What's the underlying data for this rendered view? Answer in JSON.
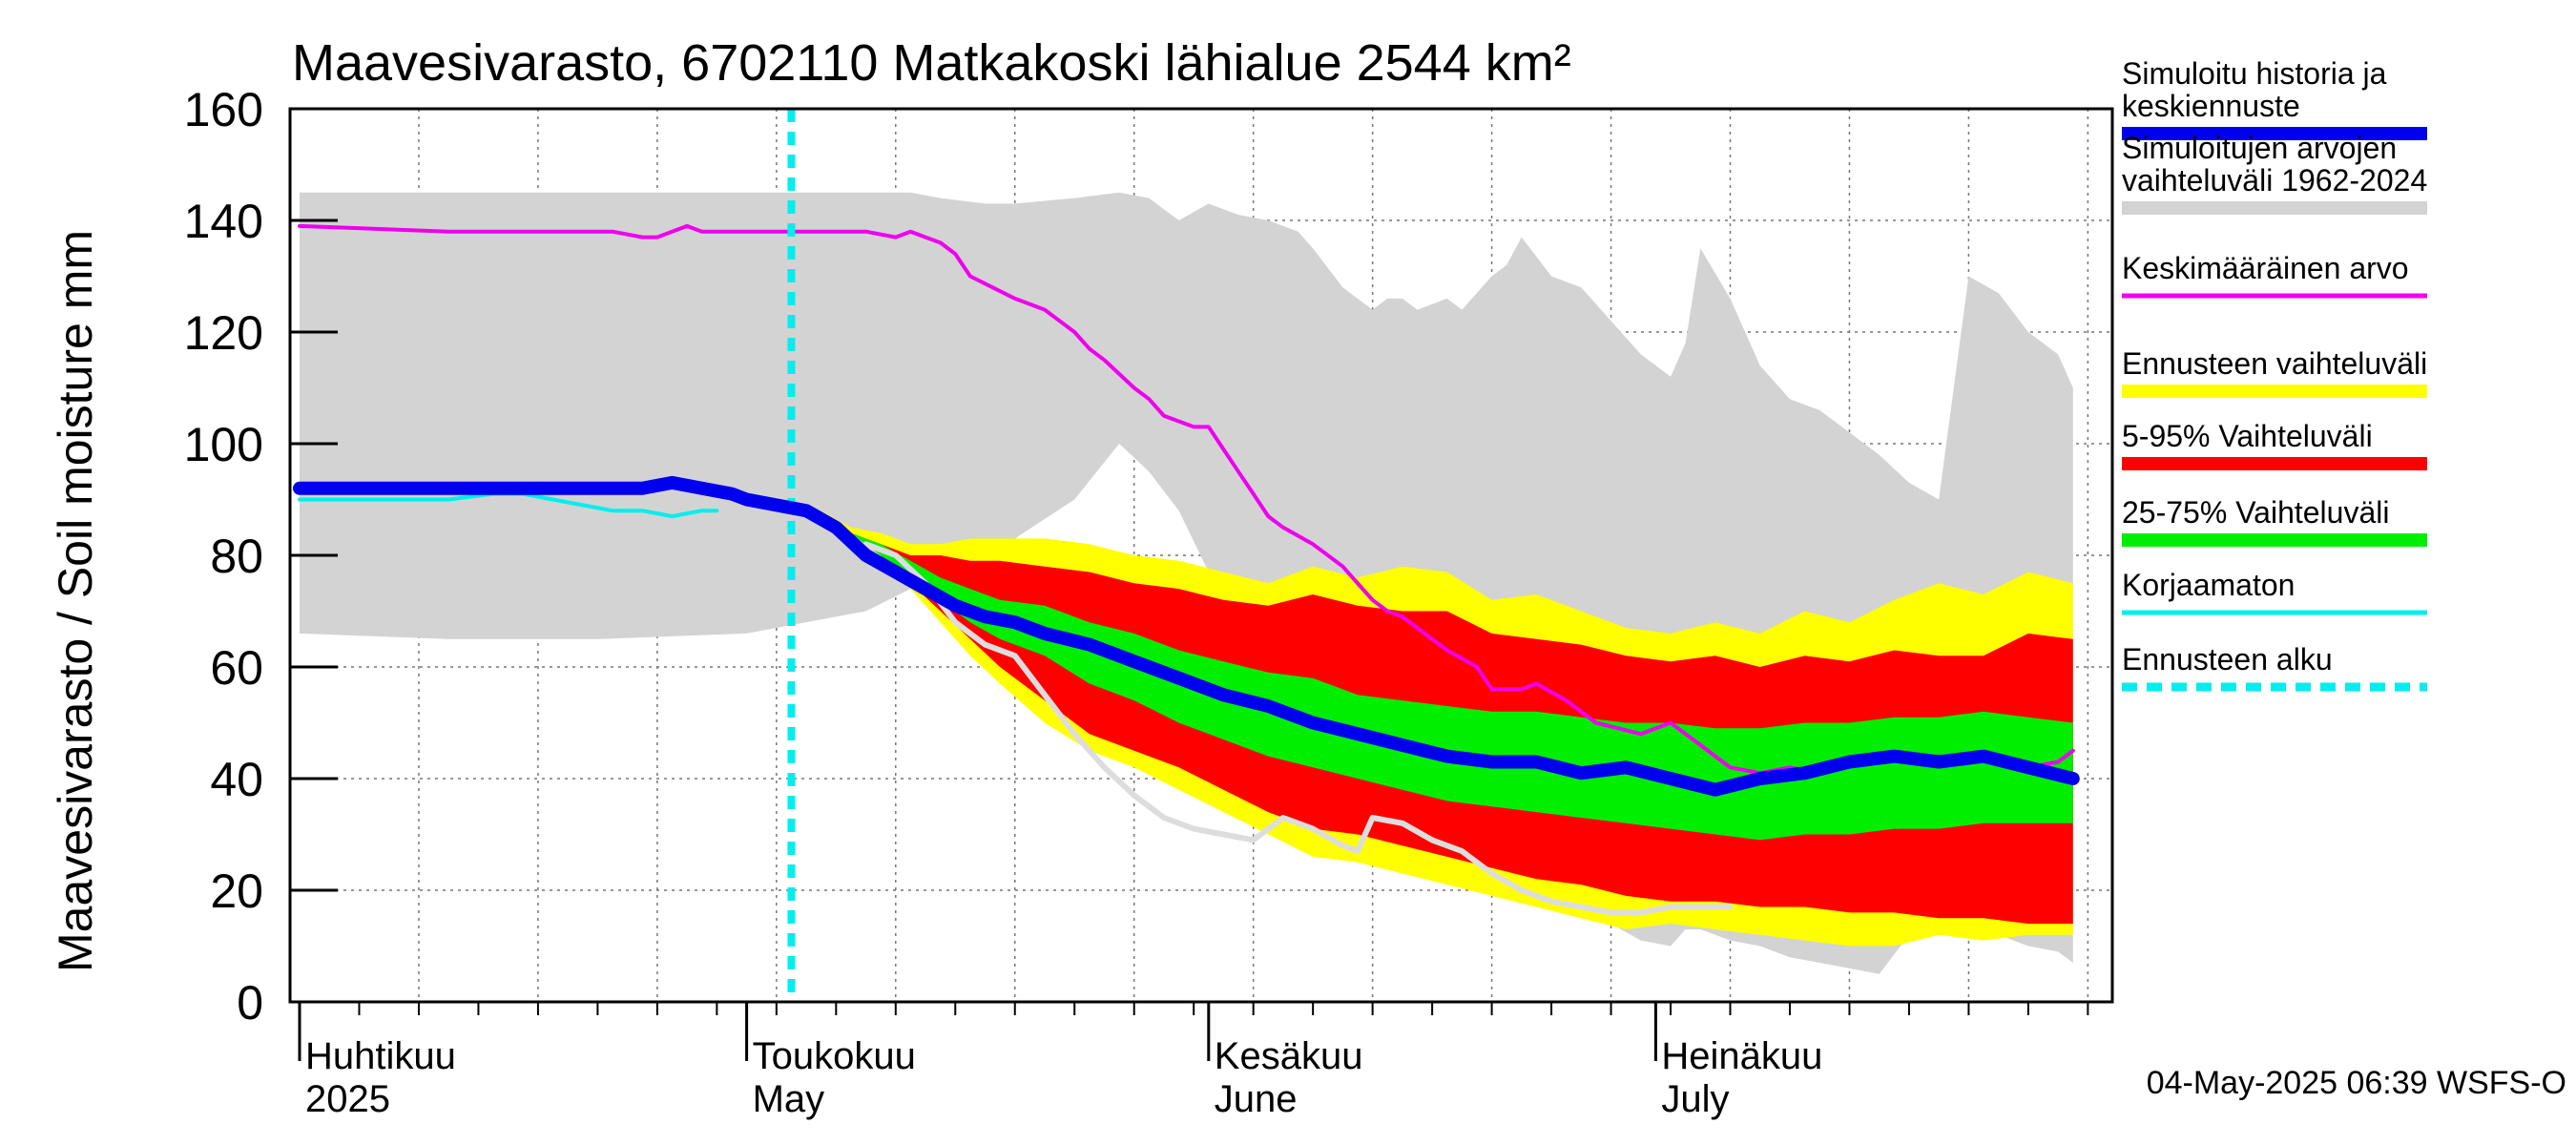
{
  "chart_data": {
    "type": "area",
    "title": "Maavesivarasto, 6702110 Matkakoski lähialue 2544 km²",
    "ylabel": "Maavesivarasto / Soil moisture   mm",
    "ylim": [
      0,
      160
    ],
    "yticks": [
      0,
      20,
      40,
      60,
      80,
      100,
      120,
      140,
      160
    ],
    "x_start": "2025-04-01",
    "x_end": "2025-07-31",
    "grid": true,
    "forecast_start": "2025-05-04",
    "month_labels": [
      {
        "date": "2025-04-01",
        "fi": "Huhtikuu",
        "en": "2025"
      },
      {
        "date": "2025-05-01",
        "fi": "Toukokuu",
        "en": "May"
      },
      {
        "date": "2025-06-01",
        "fi": "Kesäkuu",
        "en": "June"
      },
      {
        "date": "2025-07-01",
        "fi": "Heinäkuu",
        "en": "July"
      }
    ],
    "footer": "04-May-2025 06:39 WSFS-O",
    "legend": [
      {
        "key": "mean_forecast",
        "label_lines": [
          "Simuloitu historia ja",
          "keskiennuste"
        ],
        "color": "#0000ee",
        "style": "thick"
      },
      {
        "key": "hist_range",
        "label_lines": [
          "Simuloitujen arvojen",
          "vaihteluväli 1962-2024"
        ],
        "color": "#d3d3d3",
        "style": "thick"
      },
      {
        "key": "mean_value",
        "label_lines": [
          "Keskimääräinen arvo"
        ],
        "color": "#ee00ee",
        "style": "thin"
      },
      {
        "key": "forecast_range",
        "label_lines": [
          "Ennusteen vaihteluväli"
        ],
        "color": "#ffff00",
        "style": "thick"
      },
      {
        "key": "p5_95",
        "label_lines": [
          "5-95% Vaihteluväli"
        ],
        "color": "#ff0000",
        "style": "thick"
      },
      {
        "key": "p25_75",
        "label_lines": [
          "25-75% Vaihteluväli"
        ],
        "color": "#00ee00",
        "style": "thick"
      },
      {
        "key": "uncorrected",
        "label_lines": [
          "Korjaamaton"
        ],
        "color": "#00eeee",
        "style": "thin"
      },
      {
        "key": "forecast_start",
        "label_lines": [
          "Ennusteen alku"
        ],
        "color": "#00eeee",
        "style": "dashed"
      }
    ],
    "series": {
      "hist_range": {
        "name": "Simuloitujen arvojen vaihteluväli 1962-2024",
        "color": "#d3d3d3",
        "day": [
          0,
          10,
          20,
          30,
          38,
          41,
          43,
          46,
          48,
          52,
          55,
          57,
          59,
          61,
          63,
          65,
          66,
          67,
          68,
          70,
          72,
          73,
          74,
          75,
          76,
          77,
          78,
          80,
          81,
          82,
          84,
          86,
          88,
          90,
          92,
          93,
          94,
          96,
          98,
          100,
          102,
          104,
          106,
          108,
          110,
          112,
          114,
          116,
          118,
          119
        ],
        "upper": [
          145,
          145,
          145,
          145,
          145,
          145,
          144,
          143,
          143,
          144,
          145,
          144,
          140,
          143,
          141,
          140,
          139,
          138,
          135,
          128,
          124,
          126,
          126,
          124,
          125,
          126,
          124,
          130,
          132,
          137,
          130,
          128,
          122,
          116,
          112,
          118,
          135,
          126,
          114,
          108,
          106,
          102,
          98,
          93,
          90,
          130,
          127,
          120,
          116,
          110
        ],
        "lower": [
          66,
          65,
          65,
          66,
          70,
          74,
          76,
          79,
          83,
          90,
          100,
          95,
          88,
          77,
          70,
          63,
          52,
          41,
          34,
          30,
          28,
          28,
          27,
          27,
          26,
          25,
          24,
          23,
          22,
          20,
          18,
          16,
          14,
          11,
          10,
          13,
          13,
          11,
          10,
          8,
          7,
          6,
          5,
          12,
          12,
          14,
          12,
          10,
          9,
          7
        ]
      },
      "forecast_range": {
        "name": "Ennusteen vaihteluväli",
        "color": "#ffff00",
        "day": [
          33,
          35,
          37,
          39,
          41,
          43,
          45,
          47,
          50,
          53,
          56,
          59,
          62,
          65,
          68,
          71,
          74,
          77,
          80,
          83,
          86,
          89,
          92,
          95,
          98,
          101,
          104,
          107,
          110,
          113,
          116,
          119
        ],
        "upper": [
          90,
          88,
          85,
          84,
          82,
          82,
          83,
          83,
          83,
          82,
          80,
          79,
          77,
          75,
          78,
          76,
          78,
          77,
          72,
          73,
          70,
          67,
          66,
          68,
          66,
          70,
          68,
          72,
          75,
          73,
          77,
          75
        ],
        "lower": [
          90,
          88,
          84,
          80,
          74,
          68,
          62,
          57,
          50,
          45,
          42,
          38,
          34,
          30,
          26,
          25,
          23,
          21,
          19,
          17,
          15,
          13,
          14,
          13,
          12,
          11,
          10,
          10,
          12,
          11,
          12,
          12
        ]
      },
      "p5_95": {
        "name": "5-95% Vaihteluväli",
        "color": "#ff0000",
        "day": [
          33,
          35,
          37,
          39,
          41,
          43,
          45,
          47,
          50,
          53,
          56,
          59,
          62,
          65,
          68,
          71,
          74,
          77,
          80,
          83,
          86,
          89,
          92,
          95,
          98,
          101,
          104,
          107,
          110,
          113,
          116,
          119
        ],
        "upper": [
          90,
          88,
          84,
          82,
          80,
          80,
          79,
          79,
          78,
          77,
          75,
          74,
          72,
          71,
          73,
          71,
          70,
          70,
          66,
          65,
          64,
          62,
          61,
          62,
          60,
          62,
          61,
          63,
          62,
          62,
          66,
          65
        ],
        "lower": [
          90,
          88,
          84,
          80,
          75,
          70,
          65,
          60,
          54,
          48,
          45,
          42,
          38,
          34,
          31,
          30,
          28,
          26,
          24,
          22,
          21,
          19,
          18,
          18,
          17,
          17,
          16,
          16,
          15,
          15,
          14,
          14
        ]
      },
      "p25_75": {
        "name": "25-75% Vaihteluväli",
        "color": "#00ee00",
        "day": [
          33,
          35,
          37,
          39,
          41,
          43,
          45,
          47,
          50,
          53,
          56,
          59,
          62,
          65,
          68,
          71,
          74,
          77,
          80,
          83,
          86,
          89,
          92,
          95,
          98,
          101,
          104,
          107,
          110,
          113,
          116,
          119
        ],
        "upper": [
          90,
          88,
          84,
          82,
          79,
          76,
          74,
          72,
          71,
          68,
          66,
          63,
          61,
          59,
          58,
          55,
          54,
          53,
          52,
          52,
          51,
          50,
          50,
          49,
          49,
          50,
          50,
          51,
          51,
          52,
          51,
          50
        ],
        "lower": [
          90,
          88,
          84,
          80,
          76,
          72,
          68,
          65,
          62,
          57,
          54,
          50,
          47,
          44,
          42,
          40,
          38,
          36,
          35,
          34,
          33,
          32,
          31,
          30,
          29,
          30,
          30,
          31,
          31,
          32,
          32,
          32
        ]
      },
      "mean_value": {
        "name": "Keskimääräinen arvo",
        "color": "#ee00ee",
        "day": [
          0,
          10,
          20,
          21,
          23,
          24,
          25,
          26,
          27,
          29,
          33,
          38,
          40,
          41,
          42,
          43,
          44,
          45,
          48,
          50,
          51,
          52,
          53,
          54,
          56,
          57,
          58,
          60,
          61,
          62,
          63,
          64,
          65,
          66,
          68,
          70,
          71,
          72,
          73,
          74,
          75,
          77,
          79,
          80,
          82,
          83,
          85,
          87,
          90,
          92,
          94,
          96,
          98,
          100,
          102,
          104,
          106,
          108,
          110,
          112,
          114,
          116,
          118,
          119
        ],
        "values": [
          139,
          138,
          138,
          138,
          137,
          137,
          138,
          139,
          138,
          138,
          138,
          138,
          137,
          138,
          137,
          136,
          134,
          130,
          126,
          124,
          122,
          120,
          117,
          115,
          110,
          108,
          105,
          103,
          103,
          99,
          95,
          91,
          87,
          85,
          82,
          78,
          75,
          72,
          70,
          69,
          67,
          63,
          60,
          56,
          56,
          57,
          54,
          50,
          48,
          50,
          46,
          42,
          41,
          42,
          41,
          43,
          44,
          43,
          44,
          43,
          44,
          42,
          43,
          45
        ]
      },
      "uncorrected": {
        "name": "Korjaamaton",
        "color": "#00eeee",
        "day": [
          0,
          5,
          10,
          13,
          15,
          17,
          19,
          21,
          23,
          25,
          27,
          28
        ],
        "values": [
          90,
          90,
          90,
          91,
          91,
          90,
          89,
          88,
          88,
          87,
          88,
          88
        ]
      },
      "grey_member": {
        "name": "",
        "color": "#dddddd",
        "day": [
          38,
          40,
          42,
          44,
          46,
          48,
          50,
          52,
          54,
          56,
          58,
          60,
          62,
          64,
          66,
          68,
          70,
          71,
          72,
          74,
          76,
          78,
          80,
          82,
          84,
          86,
          88,
          90,
          92,
          94,
          96
        ],
        "values": [
          82,
          80,
          75,
          68,
          64,
          62,
          55,
          48,
          42,
          37,
          33,
          31,
          30,
          29,
          33,
          31,
          28,
          27,
          33,
          32,
          29,
          27,
          23,
          20,
          18,
          17,
          16,
          16,
          17,
          17,
          17
        ]
      },
      "mean_forecast": {
        "name": "Simuloitu historia ja keskiennuste",
        "color": "#0000ee",
        "day": [
          0,
          5,
          10,
          12,
          15,
          20,
          23,
          25,
          27,
          29,
          30,
          32,
          34,
          36,
          38,
          40,
          42,
          44,
          46,
          48,
          50,
          53,
          56,
          59,
          62,
          65,
          68,
          71,
          74,
          77,
          80,
          83,
          86,
          89,
          92,
          95,
          98,
          101,
          104,
          107,
          110,
          113,
          116,
          119
        ],
        "values": [
          92,
          92,
          92,
          92,
          92,
          92,
          92,
          93,
          92,
          91,
          90,
          89,
          88,
          85,
          80,
          77,
          74,
          71,
          69,
          68,
          66,
          64,
          61,
          58,
          55,
          53,
          50,
          48,
          46,
          44,
          43,
          43,
          41,
          42,
          40,
          38,
          40,
          41,
          43,
          44,
          43,
          44,
          42,
          40
        ]
      }
    }
  }
}
